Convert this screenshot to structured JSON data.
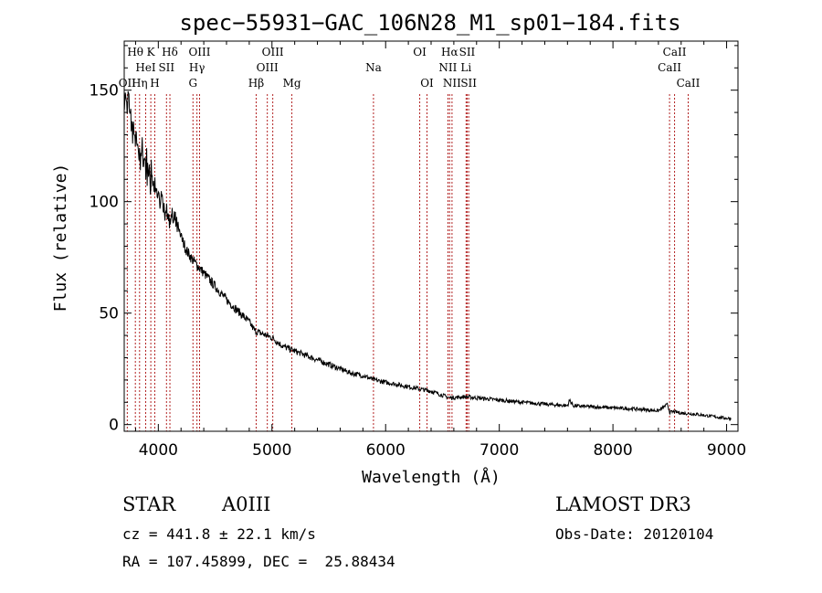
{
  "chart_data": {
    "type": "line",
    "title": "spec−55931−GAC_106N28_M1_sp01−184.fits",
    "xlabel": "Wavelength (Å)",
    "ylabel": "Flux (relative)",
    "xlim": [
      3700,
      9100
    ],
    "ylim": [
      -3,
      172
    ],
    "x_ticks": [
      4000,
      5000,
      6000,
      7000,
      8000,
      9000
    ],
    "y_ticks": [
      0,
      50,
      100,
      150
    ],
    "series": [
      {
        "name": "spectrum",
        "x": [
          3700,
          3720,
          3740,
          3760,
          3780,
          3800,
          3830,
          3860,
          3900,
          3950,
          4000,
          4050,
          4100,
          4150,
          4200,
          4250,
          4300,
          4350,
          4400,
          4500,
          4600,
          4700,
          4800,
          4850,
          4900,
          5000,
          5100,
          5200,
          5300,
          5400,
          5500,
          5600,
          5700,
          5800,
          5900,
          6000,
          6200,
          6400,
          6562,
          6700,
          7000,
          7200,
          7500,
          7600,
          7620,
          7650,
          8000,
          8200,
          8400,
          8480,
          8500,
          8540,
          8600,
          8700,
          8800,
          8900,
          9000
        ],
        "values": [
          150,
          142,
          148,
          137,
          135,
          128,
          122,
          120,
          115,
          108,
          103,
          97,
          93,
          90,
          84,
          78,
          74,
          71,
          68,
          62,
          56,
          51,
          46,
          42,
          41,
          39,
          35,
          33,
          31,
          29,
          27,
          25,
          23,
          22,
          20,
          19,
          17,
          15,
          12,
          12.5,
          11,
          10,
          8.8,
          8.5,
          11,
          8.4,
          7.5,
          7,
          6.2,
          9,
          5.5,
          5.8,
          5.2,
          4.8,
          4.2,
          3.5,
          2.8
        ]
      }
    ],
    "lines": [
      {
        "name": "O II",
        "wavelength": 3727,
        "label": "OII",
        "row": 3
      },
      {
        "name": "H theta",
        "wavelength": 3798,
        "label": "Hθ",
        "row": 1
      },
      {
        "name": "H eta",
        "wavelength": 3835,
        "label": "Hη",
        "row": 3
      },
      {
        "name": "K",
        "wavelength": 3934,
        "label": "K",
        "row": 1
      },
      {
        "name": "He I",
        "wavelength": 3889,
        "label": "HeI",
        "row": 2
      },
      {
        "name": "H",
        "wavelength": 3969,
        "label": "H",
        "row": 3
      },
      {
        "name": "S II",
        "wavelength": 4072,
        "label": "SII",
        "row": 2
      },
      {
        "name": "H delta",
        "wavelength": 4102,
        "label": "Hδ",
        "row": 1
      },
      {
        "name": "O III 4363",
        "wavelength": 4363,
        "label": "OIII",
        "row": 1
      },
      {
        "name": "H gamma",
        "wavelength": 4340,
        "label": "Hγ",
        "row": 2
      },
      {
        "name": "G",
        "wavelength": 4305,
        "label": "G",
        "row": 3
      },
      {
        "name": "H beta",
        "wavelength": 4861,
        "label": "Hβ",
        "row": 3
      },
      {
        "name": "O III 4959",
        "wavelength": 4959,
        "label": "OIII",
        "row": 2
      },
      {
        "name": "O III 5007",
        "wavelength": 5007,
        "label": "OIII",
        "row": 1
      },
      {
        "name": "Mg",
        "wavelength": 5175,
        "label": "Mg",
        "row": 3
      },
      {
        "name": "Na",
        "wavelength": 5893,
        "label": "Na",
        "row": 2
      },
      {
        "name": "O I 6300",
        "wavelength": 6300,
        "label": "OI",
        "row": 1
      },
      {
        "name": "O I 6364",
        "wavelength": 6364,
        "label": "OI",
        "row": 3
      },
      {
        "name": "N II 6548",
        "wavelength": 6548,
        "label": "NII",
        "row": 2
      },
      {
        "name": "H alpha",
        "wavelength": 6563,
        "label": "Hα",
        "row": 1
      },
      {
        "name": "N II 6584",
        "wavelength": 6584,
        "label": "NII",
        "row": 3
      },
      {
        "name": "Li",
        "wavelength": 6708,
        "label": "Li",
        "row": 2
      },
      {
        "name": "S II 6717",
        "wavelength": 6717,
        "label": "SII",
        "row": 1
      },
      {
        "name": "S II 6731",
        "wavelength": 6731,
        "label": "SII",
        "row": 3
      },
      {
        "name": "Ca II 8498",
        "wavelength": 8498,
        "label": "CaII",
        "row": 2
      },
      {
        "name": "Ca II 8542",
        "wavelength": 8542,
        "label": "CaII",
        "row": 1
      },
      {
        "name": "Ca II 8662",
        "wavelength": 8662,
        "label": "CaII",
        "row": 3
      }
    ]
  },
  "info": {
    "object_class": "STAR",
    "subclass": "A0III",
    "survey": "LAMOST DR3",
    "cz": "cz = 441.8 ± 22.1 km/s",
    "obs_date": "Obs-Date: 20120104",
    "coords": "RA = 107.45899, DEC =  25.88434"
  },
  "colors": {
    "line_marker": "#b22222",
    "spectrum": "#000000"
  }
}
